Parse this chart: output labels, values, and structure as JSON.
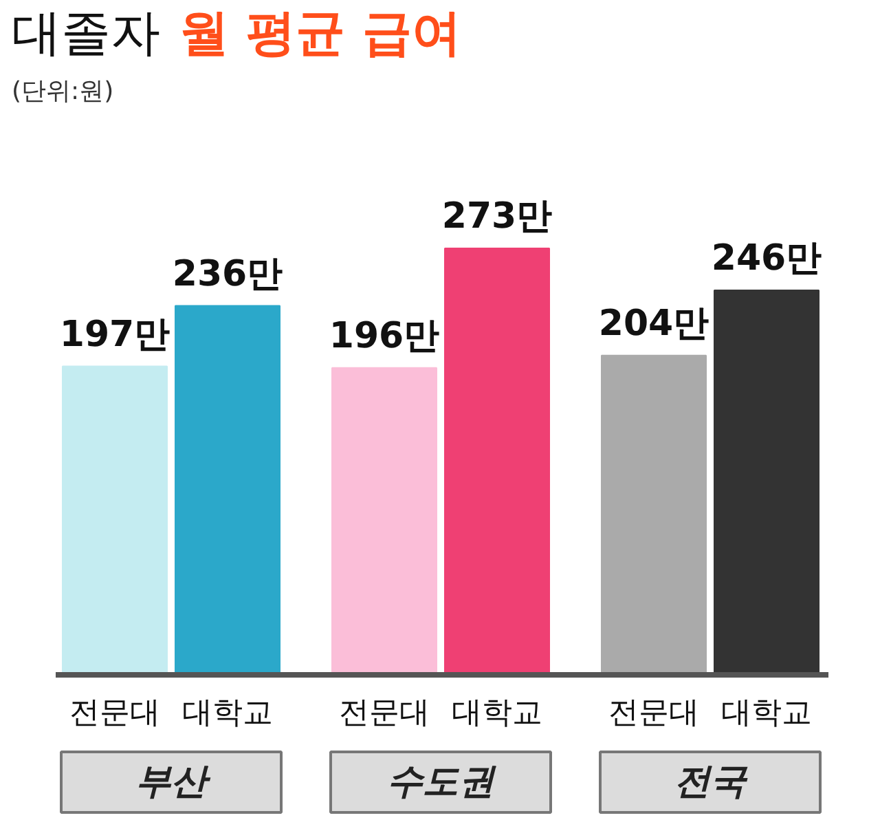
{
  "chart_data": {
    "type": "bar",
    "title": "대졸자 월 평균 급여",
    "subtitle": "(단위:원)",
    "categories": [
      "전문대",
      "대학교",
      "전문대",
      "대학교",
      "전문대",
      "대학교"
    ],
    "values": [
      197,
      236,
      196,
      273,
      204,
      246
    ],
    "colors": [
      "#c4ecf1",
      "#2ba8ca",
      "#fbbed8",
      "#ef4073",
      "#aaaaaa",
      "#333333"
    ],
    "value_labels": [
      "197만",
      "236만",
      "196만",
      "273만",
      "204만",
      "246만"
    ],
    "annotations": [
      "부산",
      "수도권",
      "전국"
    ],
    "grid": false
  }
}
